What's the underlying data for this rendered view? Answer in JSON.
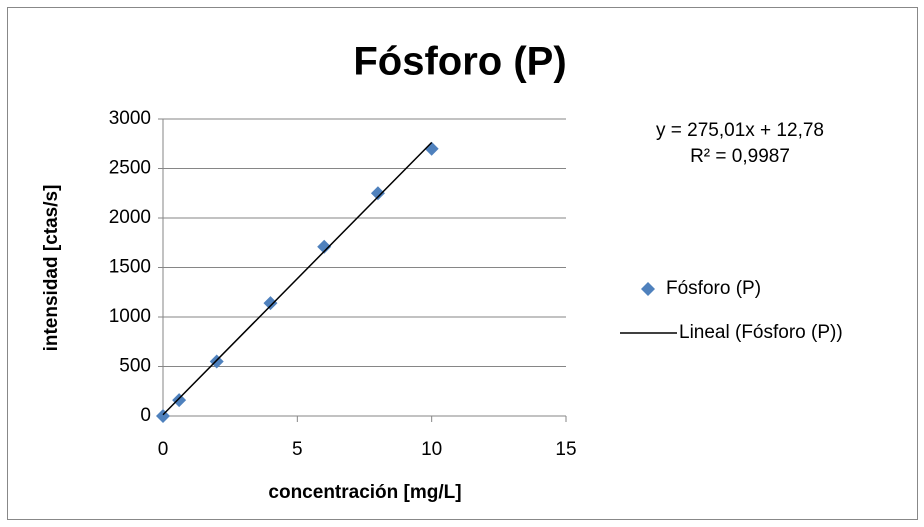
{
  "chart_data": {
    "type": "scatter",
    "title": "Fósforo (P)",
    "x_label": "concentración [mg/L]",
    "y_label": "intensidad [ctas/s]",
    "series": [
      {
        "name": "Fósforo (P)",
        "color": "#4f81bd",
        "type": "scatter",
        "x": [
          0,
          0.6,
          2,
          4,
          6,
          8,
          10
        ],
        "values": [
          0,
          160,
          550,
          1140,
          1710,
          2250,
          2700
        ]
      },
      {
        "name": "Lineal (Fósforo (P))",
        "color": "#000000",
        "type": "line",
        "x": [
          0,
          10
        ],
        "values": [
          12.78,
          2762.88
        ]
      }
    ],
    "annotations": [
      "y = 275,01x + 12,78",
      "R² = 0,9987"
    ],
    "xlim": [
      0,
      15
    ],
    "xticks": [
      0,
      5,
      10,
      15
    ],
    "ylim": [
      0,
      3000
    ],
    "yticks": [
      0,
      500,
      1000,
      1500,
      2000,
      2500,
      3000
    ],
    "grid": true,
    "legend": "right"
  }
}
